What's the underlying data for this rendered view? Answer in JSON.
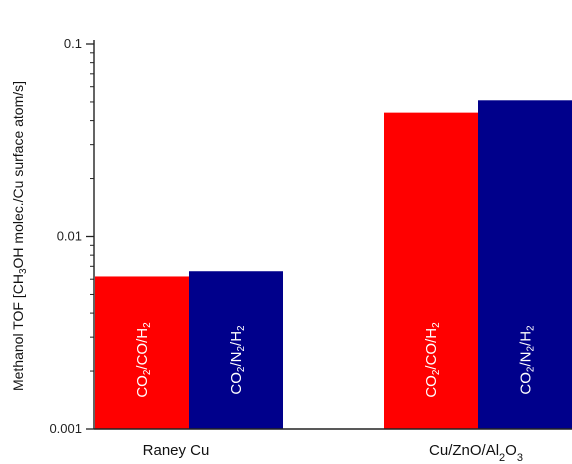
{
  "chart_data": {
    "type": "bar",
    "y_scale": "log",
    "ylim": [
      0.001,
      0.1
    ],
    "yticks": [
      0.001,
      0.01,
      0.1
    ],
    "ytick_labels": [
      "0.001",
      "0.01",
      "0.1"
    ],
    "ylabel_parts": [
      {
        "t": "Methanol TOF [CH",
        "sub": false
      },
      {
        "t": "3",
        "sub": true
      },
      {
        "t": "OH molec./Cu surface atom/s]",
        "sub": false
      }
    ],
    "categories": [
      {
        "parts": [
          {
            "t": "Raney Cu",
            "sub": false
          }
        ]
      },
      {
        "parts": [
          {
            "t": "Cu/ZnO/Al",
            "sub": false
          },
          {
            "t": "2",
            "sub": true
          },
          {
            "t": "O",
            "sub": false
          },
          {
            "t": "3",
            "sub": true
          }
        ]
      }
    ],
    "series": [
      {
        "label_parts": [
          {
            "t": "CO",
            "sub": false
          },
          {
            "t": "2",
            "sub": true
          },
          {
            "t": "/CO/H",
            "sub": false
          },
          {
            "t": "2",
            "sub": true
          }
        ],
        "color": "#ff0000",
        "values": [
          0.0062,
          0.044
        ]
      },
      {
        "label_parts": [
          {
            "t": "CO",
            "sub": false
          },
          {
            "t": "2",
            "sub": true
          },
          {
            "t": "/N",
            "sub": false
          },
          {
            "t": "2",
            "sub": true
          },
          {
            "t": "/H",
            "sub": false
          },
          {
            "t": "2",
            "sub": true
          }
        ],
        "color": "#00008b",
        "values": [
          0.0066,
          0.051
        ]
      }
    ]
  }
}
